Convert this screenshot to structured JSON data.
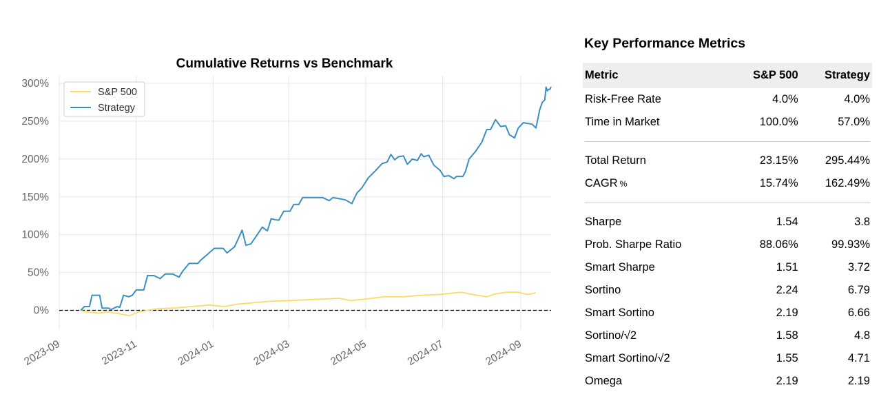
{
  "chart_data": {
    "type": "line",
    "title": "Cumulative Returns vs Benchmark",
    "xlabel": "",
    "ylabel": "",
    "x_axis_type": "date",
    "xlim": [
      "2023-09-01",
      "2024-09-25"
    ],
    "ylim": [
      -25,
      310
    ],
    "x_ticks": [
      "2023-09",
      "2023-11",
      "2024-01",
      "2024-03",
      "2024-05",
      "2024-07",
      "2024-09"
    ],
    "y_ticks": [
      0,
      50,
      100,
      150,
      200,
      250,
      300
    ],
    "y_tick_labels": [
      "0%",
      "50%",
      "100%",
      "150%",
      "200%",
      "250%",
      "300%"
    ],
    "y_unit": "percent",
    "grid": true,
    "legend_position": "top-left",
    "reference_line": {
      "y": 0,
      "style": "dashed",
      "color": "#000000"
    },
    "series": [
      {
        "name": "S&P 500",
        "color": "#ffd966",
        "points": [
          [
            "2023-09-18",
            0
          ],
          [
            "2023-09-22",
            -2
          ],
          [
            "2023-09-28",
            -3
          ],
          [
            "2023-10-03",
            -3.5
          ],
          [
            "2023-10-10",
            -2
          ],
          [
            "2023-10-13",
            -3
          ],
          [
            "2023-10-20",
            -5
          ],
          [
            "2023-10-27",
            -7
          ],
          [
            "2023-11-03",
            -2
          ],
          [
            "2023-11-10",
            0
          ],
          [
            "2023-11-17",
            2
          ],
          [
            "2023-11-30",
            3
          ],
          [
            "2023-12-15",
            5
          ],
          [
            "2023-12-29",
            7
          ],
          [
            "2024-01-10",
            5
          ],
          [
            "2024-01-19",
            8
          ],
          [
            "2024-02-01",
            10
          ],
          [
            "2024-02-15",
            12
          ],
          [
            "2024-03-01",
            13
          ],
          [
            "2024-03-15",
            14
          ],
          [
            "2024-03-28",
            15
          ],
          [
            "2024-04-10",
            16
          ],
          [
            "2024-04-19",
            13
          ],
          [
            "2024-05-01",
            15
          ],
          [
            "2024-05-15",
            18
          ],
          [
            "2024-05-31",
            18
          ],
          [
            "2024-06-14",
            20
          ],
          [
            "2024-06-28",
            21
          ],
          [
            "2024-07-10",
            23
          ],
          [
            "2024-07-16",
            24
          ],
          [
            "2024-07-25",
            21
          ],
          [
            "2024-08-05",
            18
          ],
          [
            "2024-08-12",
            22
          ],
          [
            "2024-08-21",
            24
          ],
          [
            "2024-08-30",
            24
          ],
          [
            "2024-09-06",
            21
          ],
          [
            "2024-09-13",
            23.15
          ]
        ]
      },
      {
        "name": "Strategy",
        "color": "#3a8fc1",
        "points": [
          [
            "2023-09-18",
            0
          ],
          [
            "2023-09-21",
            5
          ],
          [
            "2023-09-25",
            5
          ],
          [
            "2023-09-27",
            20
          ],
          [
            "2023-10-03",
            20
          ],
          [
            "2023-10-05",
            3
          ],
          [
            "2023-10-10",
            3
          ],
          [
            "2023-10-12",
            1
          ],
          [
            "2023-10-17",
            5
          ],
          [
            "2023-10-19",
            4
          ],
          [
            "2023-10-22",
            20
          ],
          [
            "2023-10-26",
            18
          ],
          [
            "2023-10-29",
            20
          ],
          [
            "2023-11-01",
            27
          ],
          [
            "2023-11-07",
            27
          ],
          [
            "2023-11-10",
            46
          ],
          [
            "2023-11-15",
            46
          ],
          [
            "2023-11-20",
            42
          ],
          [
            "2023-11-24",
            48
          ],
          [
            "2023-11-30",
            48
          ],
          [
            "2023-12-05",
            44
          ],
          [
            "2023-12-08",
            52
          ],
          [
            "2023-12-13",
            62
          ],
          [
            "2023-12-20",
            62
          ],
          [
            "2023-12-22",
            66
          ],
          [
            "2024-01-02",
            82
          ],
          [
            "2024-01-09",
            82
          ],
          [
            "2024-01-12",
            76
          ],
          [
            "2024-01-18",
            84
          ],
          [
            "2024-01-24",
            106
          ],
          [
            "2024-01-27",
            86
          ],
          [
            "2024-01-31",
            88
          ],
          [
            "2024-02-05",
            100
          ],
          [
            "2024-02-09",
            110
          ],
          [
            "2024-02-13",
            105
          ],
          [
            "2024-02-16",
            121
          ],
          [
            "2024-02-22",
            119
          ],
          [
            "2024-02-26",
            131
          ],
          [
            "2024-03-02",
            131
          ],
          [
            "2024-03-05",
            140
          ],
          [
            "2024-03-09",
            140
          ],
          [
            "2024-03-12",
            149
          ],
          [
            "2024-03-28",
            149
          ],
          [
            "2024-04-02",
            145
          ],
          [
            "2024-04-05",
            149
          ],
          [
            "2024-04-09",
            148
          ],
          [
            "2024-04-15",
            146
          ],
          [
            "2024-04-20",
            141
          ],
          [
            "2024-04-24",
            155
          ],
          [
            "2024-04-28",
            162
          ],
          [
            "2024-05-03",
            175
          ],
          [
            "2024-05-09",
            185
          ],
          [
            "2024-05-14",
            194
          ],
          [
            "2024-05-18",
            196
          ],
          [
            "2024-05-21",
            206
          ],
          [
            "2024-05-24",
            199
          ],
          [
            "2024-05-27",
            203
          ],
          [
            "2024-05-31",
            204
          ],
          [
            "2024-06-03",
            193
          ],
          [
            "2024-06-07",
            200
          ],
          [
            "2024-06-11",
            198
          ],
          [
            "2024-06-14",
            207
          ],
          [
            "2024-06-16",
            203
          ],
          [
            "2024-06-20",
            205
          ],
          [
            "2024-06-24",
            192
          ],
          [
            "2024-06-29",
            185
          ],
          [
            "2024-07-02",
            177
          ],
          [
            "2024-07-06",
            178
          ],
          [
            "2024-07-10",
            174
          ],
          [
            "2024-07-12",
            177
          ],
          [
            "2024-07-17",
            177
          ],
          [
            "2024-07-19",
            183
          ],
          [
            "2024-07-22",
            200
          ],
          [
            "2024-07-27",
            210
          ],
          [
            "2024-08-01",
            222
          ],
          [
            "2024-08-05",
            239
          ],
          [
            "2024-08-08",
            239
          ],
          [
            "2024-08-12",
            252
          ],
          [
            "2024-08-16",
            243
          ],
          [
            "2024-08-20",
            244
          ],
          [
            "2024-08-23",
            232
          ],
          [
            "2024-08-27",
            228
          ],
          [
            "2024-08-30",
            241
          ],
          [
            "2024-09-03",
            248
          ],
          [
            "2024-09-10",
            246
          ],
          [
            "2024-09-13",
            241
          ],
          [
            "2024-09-16",
            265
          ],
          [
            "2024-09-18",
            275
          ],
          [
            "2024-09-20",
            278
          ],
          [
            "2024-09-21",
            295
          ],
          [
            "2024-09-22",
            290
          ],
          [
            "2024-09-23",
            292
          ],
          [
            "2024-09-24",
            292
          ],
          [
            "2024-09-25",
            295.44
          ]
        ]
      }
    ]
  },
  "metrics": {
    "title": "Key Performance Metrics",
    "headers": [
      "Metric",
      "S&P 500",
      "Strategy"
    ],
    "groups": [
      [
        {
          "name": "Risk-Free Rate",
          "sp500": "4.0%",
          "strategy": "4.0%"
        },
        {
          "name": "Time in Market",
          "sp500": "100.0%",
          "strategy": "57.0%"
        }
      ],
      [
        {
          "name": "Total Return",
          "sp500": "23.15%",
          "strategy": "295.44%"
        },
        {
          "name": "CAGR",
          "suffix": "%",
          "sp500": "15.74%",
          "strategy": "162.49%"
        }
      ],
      [
        {
          "name": "Sharpe",
          "sp500": "1.54",
          "strategy": "3.8"
        },
        {
          "name": "Prob. Sharpe Ratio",
          "sp500": "88.06%",
          "strategy": "99.93%"
        },
        {
          "name": "Smart Sharpe",
          "sp500": "1.51",
          "strategy": "3.72"
        },
        {
          "name": "Sortino",
          "sp500": "2.24",
          "strategy": "6.79"
        },
        {
          "name": "Smart Sortino",
          "sp500": "2.19",
          "strategy": "6.66"
        },
        {
          "name": "Sortino/√2",
          "sp500": "1.58",
          "strategy": "4.8"
        },
        {
          "name": "Smart Sortino/√2",
          "sp500": "1.55",
          "strategy": "4.71"
        },
        {
          "name": "Omega",
          "sp500": "2.19",
          "strategy": "2.19"
        }
      ]
    ]
  }
}
